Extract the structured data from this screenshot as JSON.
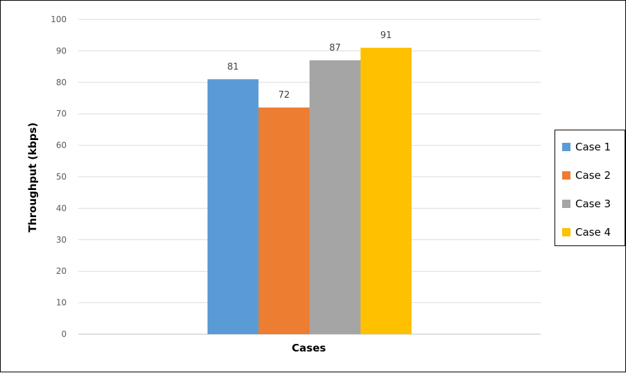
{
  "chart_data": {
    "type": "bar",
    "categories": [
      "Cases"
    ],
    "series": [
      {
        "name": "Case 1",
        "values": [
          81
        ],
        "color": "#5B9BD5"
      },
      {
        "name": "Case 2",
        "values": [
          72
        ],
        "color": "#ED7D31"
      },
      {
        "name": "Case 3",
        "values": [
          87
        ],
        "color": "#A5A5A5"
      },
      {
        "name": "Case 4",
        "values": [
          91
        ],
        "color": "#FFC000"
      }
    ],
    "title": "",
    "xlabel": "Cases",
    "ylabel": "Throughput (kbps)",
    "ylim": [
      0,
      100
    ],
    "yticks": [
      "0",
      "10",
      "20",
      "30",
      "40",
      "50",
      "60",
      "70",
      "80",
      "90",
      "100"
    ],
    "grid": true,
    "legend_position": "right",
    "data_labels": [
      "81",
      "72",
      "87",
      "91"
    ]
  }
}
